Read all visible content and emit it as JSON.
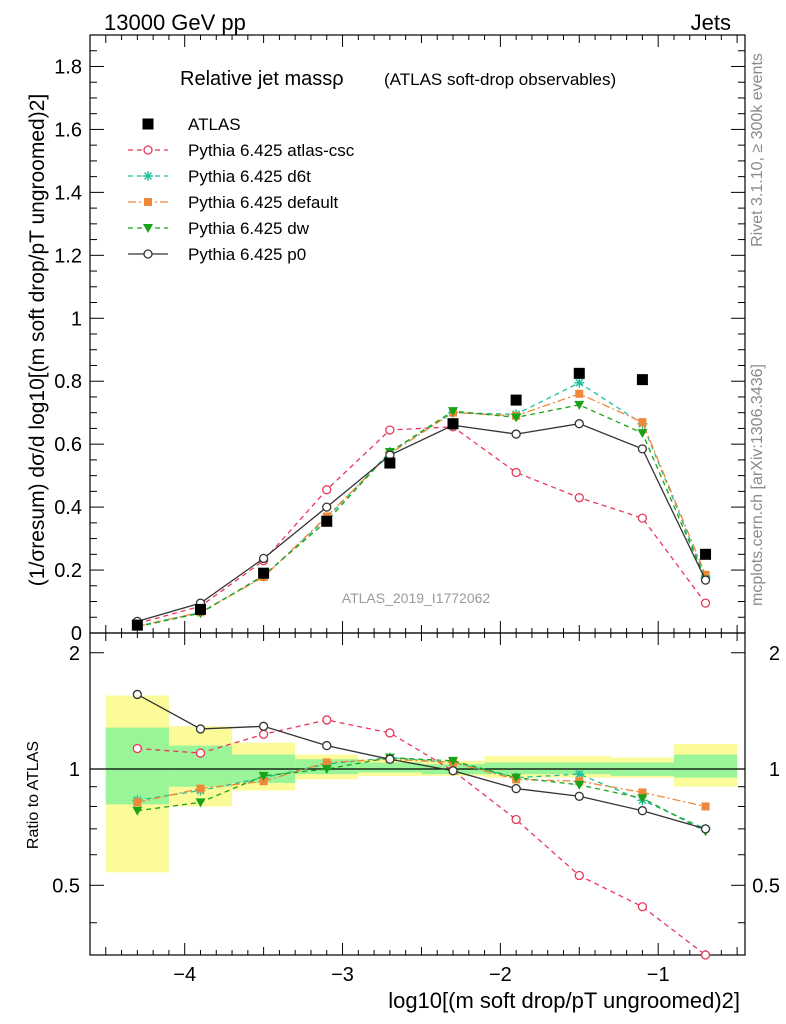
{
  "header": {
    "energy_label": "13000 GeV pp",
    "process_label": "Jets",
    "side_rivet": "Rivet 3.1.10, ≥ 300k events",
    "side_source": "mcplots.cern.ch [arXiv:1306.3436]",
    "analysis_id": "ATLAS_2019_I1772062"
  },
  "colors": {
    "atlas": "#000000",
    "atlas_csc": "#e8385a",
    "d6t": "#1fbf9a",
    "default": "#f0883a",
    "dw": "#1aa31a",
    "p0": "#333333",
    "band_inner": "#99f598",
    "band_outer": "#fbfb9a"
  },
  "chart_data": [
    {
      "type": "line",
      "title": "Relative jet massρ",
      "subtitle": "(ATLAS soft-drop observables)",
      "ylabel": "(1/σresum) dσ/d log10[(m soft drop/pT ungroomed)2]",
      "xlim": [
        -4.6,
        -0.45
      ],
      "ylim": [
        0,
        1.9
      ],
      "y_ticks": [
        0,
        0.2,
        0.4,
        0.6,
        0.8,
        1,
        1.2,
        1.4,
        1.6,
        1.8
      ],
      "y_tick_labels": [
        "0",
        "0.2",
        "0.4",
        "0.6",
        "0.8",
        "1",
        "1.2",
        "1.4",
        "1.6",
        "1.8"
      ],
      "legend_position": "top-left",
      "x": [
        -4.3,
        -3.9,
        -3.5,
        -3.1,
        -2.7,
        -2.3,
        -1.9,
        -1.5,
        -1.1,
        -0.7
      ],
      "series": [
        {
          "name": "ATLAS",
          "key": "atlas",
          "marker": "square",
          "values": [
            0.025,
            0.075,
            0.19,
            0.355,
            0.54,
            0.665,
            0.74,
            0.825,
            0.805,
            0.25
          ]
        },
        {
          "name": "Pythia 6.425 atlas-csc",
          "key": "atlas_csc",
          "marker": "open-circle",
          "dash": "dashed",
          "values": [
            0.03,
            0.085,
            0.23,
            0.455,
            0.645,
            0.655,
            0.51,
            0.43,
            0.365,
            0.095
          ]
        },
        {
          "name": "Pythia 6.425 d6t",
          "key": "d6t",
          "marker": "star",
          "dash": "dashed",
          "values": [
            0.022,
            0.065,
            0.18,
            0.365,
            0.575,
            0.7,
            0.695,
            0.795,
            0.665,
            0.175
          ]
        },
        {
          "name": "Pythia 6.425 default",
          "key": "default",
          "marker": "filled-square",
          "dash": "dashdot",
          "values": [
            0.021,
            0.066,
            0.178,
            0.37,
            0.57,
            0.7,
            0.69,
            0.76,
            0.67,
            0.185
          ]
        },
        {
          "name": "Pythia 6.425 dw",
          "key": "dw",
          "marker": "triangle-down",
          "dash": "dashed",
          "values": [
            0.02,
            0.063,
            0.183,
            0.355,
            0.575,
            0.705,
            0.685,
            0.725,
            0.635,
            0.17
          ]
        },
        {
          "name": "Pythia 6.425 p0",
          "key": "p0",
          "marker": "open-circle",
          "dash": "solid",
          "values": [
            0.037,
            0.095,
            0.237,
            0.4,
            0.565,
            0.66,
            0.632,
            0.665,
            0.585,
            0.168
          ]
        }
      ]
    },
    {
      "type": "line",
      "ylabel": "Ratio to ATLAS",
      "xlabel": "log10[(m soft drop/pT ungroomed)2]",
      "xlim": [
        -4.6,
        -0.45
      ],
      "ylim": [
        0.33,
        2.25
      ],
      "x_ticks": [
        -4,
        -3,
        -2,
        -1
      ],
      "x_tick_labels": [
        "−4",
        "−3",
        "−2",
        "−1"
      ],
      "y_ticks": [
        0.5,
        1,
        2
      ],
      "y_tick_labels": [
        "0.5",
        "1",
        "2"
      ],
      "bin_edges": [
        -4.5,
        -4.1,
        -3.7,
        -3.3,
        -2.9,
        -2.5,
        -2.1,
        -1.7,
        -1.3,
        -0.9,
        -0.5
      ],
      "band_inner": [
        [
          0.81,
          1.28
        ],
        [
          0.9,
          1.15
        ],
        [
          0.92,
          1.09
        ],
        [
          0.97,
          1.06
        ],
        [
          0.98,
          1.04
        ],
        [
          0.97,
          1.03
        ],
        [
          0.97,
          1.04
        ],
        [
          0.97,
          1.04
        ],
        [
          0.96,
          1.04
        ],
        [
          0.95,
          1.09
        ]
      ],
      "band_outer": [
        [
          0.54,
          1.55
        ],
        [
          0.8,
          1.29
        ],
        [
          0.88,
          1.17
        ],
        [
          0.94,
          1.09
        ],
        [
          0.96,
          1.06
        ],
        [
          0.96,
          1.05
        ],
        [
          0.95,
          1.08
        ],
        [
          0.95,
          1.08
        ],
        [
          0.95,
          1.07
        ],
        [
          0.9,
          1.16
        ]
      ],
      "x": [
        -4.3,
        -3.9,
        -3.5,
        -3.1,
        -2.7,
        -2.3,
        -1.9,
        -1.5,
        -1.1,
        -0.7
      ],
      "series": [
        {
          "name": "Pythia 6.425 atlas-csc",
          "key": "atlas_csc",
          "marker": "open-circle",
          "dash": "dashed",
          "values": [
            1.13,
            1.1,
            1.23,
            1.34,
            1.24,
            0.99,
            0.74,
            0.53,
            0.44,
            0.33
          ]
        },
        {
          "name": "Pythia 6.425 d6t",
          "key": "d6t",
          "marker": "star",
          "dash": "dashed",
          "values": [
            0.83,
            0.88,
            0.95,
            1.03,
            1.07,
            1.04,
            0.95,
            0.97,
            0.83,
            0.7
          ]
        },
        {
          "name": "Pythia 6.425 default",
          "key": "default",
          "marker": "filled-square",
          "dash": "dashdot",
          "values": [
            0.82,
            0.89,
            0.93,
            1.04,
            1.06,
            1.04,
            0.94,
            0.93,
            0.87,
            0.8
          ]
        },
        {
          "name": "Pythia 6.425 dw",
          "key": "dw",
          "marker": "triangle-down",
          "dash": "dashed",
          "values": [
            0.78,
            0.82,
            0.96,
            1.0,
            1.07,
            1.05,
            0.95,
            0.91,
            0.84,
            0.69
          ]
        },
        {
          "name": "Pythia 6.425 p0",
          "key": "p0",
          "marker": "open-circle",
          "dash": "solid",
          "values": [
            1.56,
            1.27,
            1.29,
            1.15,
            1.06,
            0.99,
            0.89,
            0.85,
            0.78,
            0.7
          ]
        }
      ]
    }
  ]
}
